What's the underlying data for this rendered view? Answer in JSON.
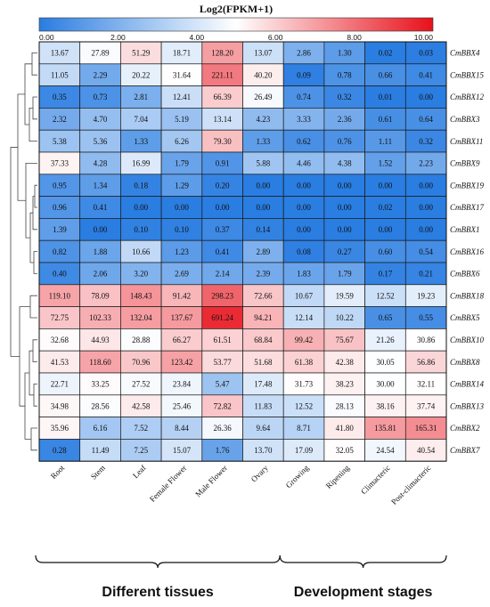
{
  "chart_data": {
    "type": "heatmap",
    "title": "Log2(FPKM+1)",
    "colorbar": {
      "min": 0,
      "max": 10,
      "tick_labels": [
        "0.00",
        "2.00",
        "4.00",
        "6.00",
        "8.00",
        "10.00"
      ],
      "colors": [
        "#2a7de1",
        "#ffffff",
        "#e8101a"
      ]
    },
    "columns": [
      "Root",
      "Stem",
      "Leaf",
      "Female Flower",
      "Male Flower",
      "Ovary",
      "Growing",
      "Ripening",
      "Climacteric",
      "Post-climacteric"
    ],
    "groups": [
      {
        "label": "Different tissues",
        "columns": 6
      },
      {
        "label": "Development stages",
        "columns": 4
      }
    ],
    "rows": [
      {
        "gene": "CmBBX4",
        "values": [
          13.67,
          27.89,
          51.29,
          18.71,
          128.2,
          13.07,
          2.86,
          1.3,
          0.02,
          0.03
        ],
        "labels": [
          "13.67",
          "27.89",
          "51.29",
          "18.71",
          "128.20",
          "13.07",
          "2.86",
          "1.30",
          "0.02",
          "0.03"
        ]
      },
      {
        "gene": "CmBBX15",
        "values": [
          11.05,
          2.29,
          20.22,
          31.64,
          221.11,
          40.2,
          0.09,
          0.78,
          0.66,
          0.41
        ],
        "labels": [
          "11.05",
          "2.29",
          "20.22",
          "31.64",
          "221.11",
          "40.20",
          "0.09",
          "0.78",
          "0.66",
          "0.41"
        ]
      },
      {
        "gene": "CmBBX12",
        "values": [
          0.35,
          0.73,
          2.81,
          12.41,
          66.39,
          26.49,
          0.74,
          0.32,
          0.01,
          0.0
        ],
        "labels": [
          "0.35",
          "0.73",
          "2.81",
          "12.41",
          "66.39",
          "26.49",
          "0.74",
          "0.32",
          "0.01",
          "0.00"
        ]
      },
      {
        "gene": "CmBBX3",
        "values": [
          2.32,
          4.7,
          7.04,
          5.19,
          13.14,
          4.23,
          3.33,
          2.36,
          0.61,
          0.64
        ],
        "labels": [
          "2.32",
          "4.70",
          "7.04",
          "5.19",
          "13.14",
          "4.23",
          "3.33",
          "2.36",
          "0.61",
          "0.64"
        ]
      },
      {
        "gene": "CmBBX11",
        "values": [
          5.38,
          5.36,
          1.33,
          6.26,
          79.3,
          1.33,
          0.62,
          0.76,
          1.11,
          0.32
        ],
        "labels": [
          "5.38",
          "5.36",
          "1.33",
          "6.26",
          "79.30",
          "1.33",
          "0.62",
          "0.76",
          "1.11",
          "0.32"
        ]
      },
      {
        "gene": "CmBBX9",
        "values": [
          37.33,
          4.28,
          16.99,
          1.79,
          0.91,
          5.88,
          4.46,
          4.38,
          1.52,
          2.23
        ],
        "labels": [
          "37.33",
          "4.28",
          "16.99",
          "1.79",
          "0.91",
          "5.88",
          "4.46",
          "4.38",
          "1.52",
          "2.23"
        ]
      },
      {
        "gene": "CmBBX19",
        "values": [
          0.95,
          1.34,
          0.18,
          1.29,
          0.2,
          0.0,
          0.0,
          0.0,
          0.0,
          0.0
        ],
        "labels": [
          "0.95",
          "1.34",
          "0.18",
          "1.29",
          "0.20",
          "0.00",
          "0.00",
          "0.00",
          "0.00",
          "0.00"
        ]
      },
      {
        "gene": "CmBBX17",
        "values": [
          0.96,
          0.41,
          0.0,
          0.0,
          0.0,
          0.0,
          0.0,
          0.0,
          0.02,
          0.0
        ],
        "labels": [
          "0.96",
          "0.41",
          "0.00",
          "0.00",
          "0.00",
          "0.00",
          "0.00",
          "0.00",
          "0.02",
          "0.00"
        ]
      },
      {
        "gene": "CmBBX1",
        "values": [
          1.39,
          0.0,
          0.1,
          0.1,
          0.37,
          0.14,
          0.0,
          0.0,
          0.0,
          0.0
        ],
        "labels": [
          "1.39",
          "0.00",
          "0.10",
          "0.10",
          "0.37",
          "0.14",
          "0.00",
          "0.00",
          "0.00",
          "0.00"
        ]
      },
      {
        "gene": "CmBBX16",
        "values": [
          0.82,
          1.88,
          10.66,
          1.23,
          0.41,
          2.89,
          0.08,
          0.27,
          0.6,
          0.54
        ],
        "labels": [
          "0.82",
          "1.88",
          "10.66",
          "1.23",
          "0.41",
          "2.89",
          "0.08",
          "0.27",
          "0.60",
          "0.54"
        ]
      },
      {
        "gene": "CmBBX6",
        "values": [
          0.4,
          2.06,
          3.2,
          2.69,
          2.14,
          2.39,
          1.83,
          1.79,
          0.17,
          0.21
        ],
        "labels": [
          "0.40",
          "2.06",
          "3.20",
          "2.69",
          "2.14",
          "2.39",
          "1.83",
          "1.79",
          "0.17",
          "0.21"
        ]
      },
      {
        "gene": "CmBBX18",
        "values": [
          119.1,
          78.09,
          148.43,
          91.42,
          298.23,
          72.66,
          10.67,
          19.59,
          12.52,
          19.23
        ],
        "labels": [
          "119.10",
          "78.09",
          "148.43",
          "91.42",
          "298.23",
          "72.66",
          "10.67",
          "19.59",
          "12.52",
          "19.23"
        ]
      },
      {
        "gene": "CmBBX5",
        "values": [
          72.75,
          102.33,
          132.04,
          137.67,
          691.24,
          94.21,
          12.14,
          10.22,
          0.65,
          0.55
        ],
        "labels": [
          "72.75",
          "102.33",
          "132.04",
          "137.67",
          "691.24",
          "94.21",
          "12.14",
          "10.22",
          "0.65",
          "0.55"
        ]
      },
      {
        "gene": "CmBBX10",
        "values": [
          32.68,
          44.93,
          28.88,
          66.27,
          61.51,
          68.84,
          99.42,
          75.67,
          21.26,
          30.86
        ],
        "labels": [
          "32.68",
          "44.93",
          "28.88",
          "66.27",
          "61.51",
          "68.84",
          "99.42",
          "75.67",
          "21.26",
          "30.86"
        ]
      },
      {
        "gene": "CmBBX8",
        "values": [
          41.53,
          118.6,
          70.96,
          123.42,
          53.77,
          51.68,
          61.38,
          42.38,
          30.05,
          56.86
        ],
        "labels": [
          "41.53",
          "118.60",
          "70.96",
          "123.42",
          "53.77",
          "51.68",
          "61.38",
          "42.38",
          "30.05",
          "56.86"
        ]
      },
      {
        "gene": "CmBBX14",
        "values": [
          22.71,
          33.25,
          27.52,
          23.84,
          5.47,
          17.48,
          31.73,
          38.23,
          30.0,
          32.11
        ],
        "labels": [
          "22.71",
          "33.25",
          "27.52",
          "23.84",
          "5.47",
          "17.48",
          "31.73",
          "38.23",
          "30.00",
          "32.11"
        ]
      },
      {
        "gene": "CmBBX13",
        "values": [
          34.98,
          28.56,
          42.58,
          25.46,
          72.82,
          11.83,
          12.52,
          28.13,
          38.16,
          37.74
        ],
        "labels": [
          "34.98",
          "28.56",
          "42.58",
          "25.46",
          "72.82",
          "11.83",
          "12.52",
          "28.13",
          "38.16",
          "37.74"
        ]
      },
      {
        "gene": "CmBBX2",
        "values": [
          35.96,
          6.16,
          7.52,
          8.44,
          26.36,
          9.64,
          8.71,
          41.8,
          135.81,
          165.31
        ],
        "labels": [
          "35.96",
          "6.16",
          "7.52",
          "8.44",
          "26.36",
          "9.64",
          "8.71",
          "41.80",
          "135.81",
          "165.31"
        ]
      },
      {
        "gene": "CmBBX7",
        "values": [
          0.28,
          11.49,
          7.25,
          15.07,
          1.76,
          13.7,
          17.09,
          32.05,
          24.54,
          40.54
        ],
        "labels": [
          "0.28",
          "11.49",
          "7.25",
          "15.07",
          "1.76",
          "13.70",
          "17.09",
          "32.05",
          "24.54",
          "40.54"
        ]
      }
    ]
  }
}
